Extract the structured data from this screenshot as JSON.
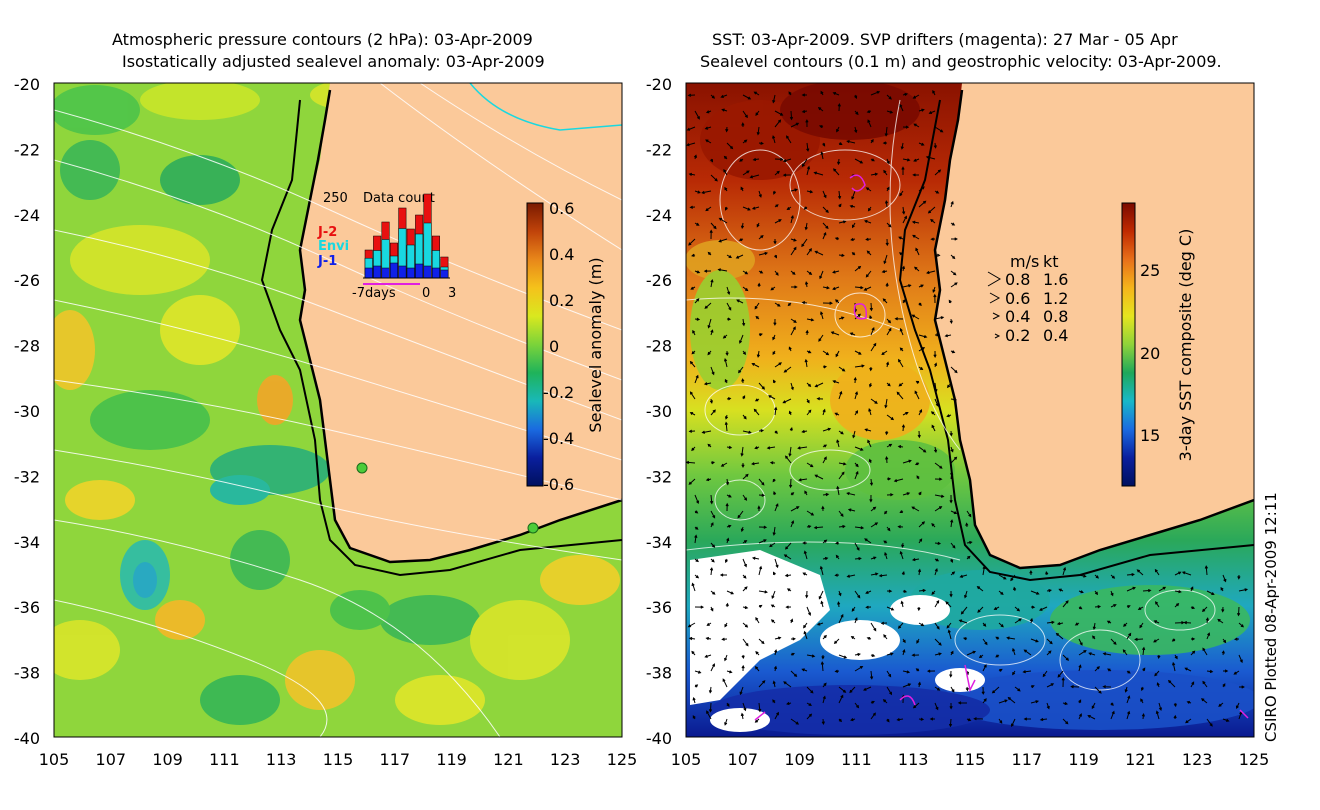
{
  "left_panel": {
    "title_line1": "Atmospheric pressure contours (2 hPa): 03-Apr-2009",
    "title_line2": "Isostatically adjusted sealevel anomaly: 03-Apr-2009",
    "colorbar": {
      "label": "Sealevel anomaly (m)",
      "ticks": [
        "0.6",
        "0.4",
        "0.2",
        "0",
        "-0.2",
        "-0.4",
        "-0.6"
      ],
      "colors": [
        "#7a1a00",
        "#c0430a",
        "#e8871a",
        "#f5c21b",
        "#d9e81f",
        "#7bd33a",
        "#1fb35a",
        "#19b8b8",
        "#1a6ae0",
        "#0a1f9e",
        "#00105e"
      ]
    },
    "data_count_inset": {
      "title": "Data count",
      "ymax_label": "250",
      "legend": [
        {
          "name": "J-2",
          "color": "#e81010"
        },
        {
          "name": "Envi",
          "color": "#19d8e0"
        },
        {
          "name": "J-1",
          "color": "#1020e8"
        }
      ],
      "x_labels": [
        "-7days",
        "0",
        "3"
      ]
    }
  },
  "right_panel": {
    "title_line1": "SST: 03-Apr-2009. SVP drifters (magenta): 27 Mar - 05 Apr",
    "title_line2": "Sealevel contours (0.1 m) and geostrophic velocity: 03-Apr-2009.",
    "colorbar": {
      "label": "3-day SST composite (deg C)",
      "ticks": [
        "25",
        "20",
        "15"
      ],
      "colors": [
        "#7a0a00",
        "#c02a00",
        "#e8701a",
        "#f5b51b",
        "#e5e51f",
        "#8fd33a",
        "#1fa85a",
        "#19b8c8",
        "#1a6ae0",
        "#0a1f9e",
        "#00105e"
      ]
    },
    "velocity_legend": {
      "header_ms": "m/s",
      "header_kt": "kt",
      "rows": [
        {
          "ms": "0.8",
          "kt": "1.6"
        },
        {
          "ms": "0.6",
          "kt": "1.2"
        },
        {
          "ms": "0.4",
          "kt": "0.8"
        },
        {
          "ms": "0.2",
          "kt": "0.4"
        }
      ]
    }
  },
  "axes": {
    "y_ticks": [
      "-20",
      "-22",
      "-24",
      "-26",
      "-28",
      "-30",
      "-32",
      "-34",
      "-36",
      "-38",
      "-40"
    ],
    "x_ticks": [
      "105",
      "107",
      "109",
      "111",
      "113",
      "115",
      "117",
      "119",
      "121",
      "123",
      "125"
    ]
  },
  "footer": "CSIRO Plotted 08-Apr-2009 12:11",
  "colors": {
    "land": "#fbc99a",
    "coast": "#000000",
    "contour": "#ffffff",
    "drifter": "#e020e0"
  }
}
